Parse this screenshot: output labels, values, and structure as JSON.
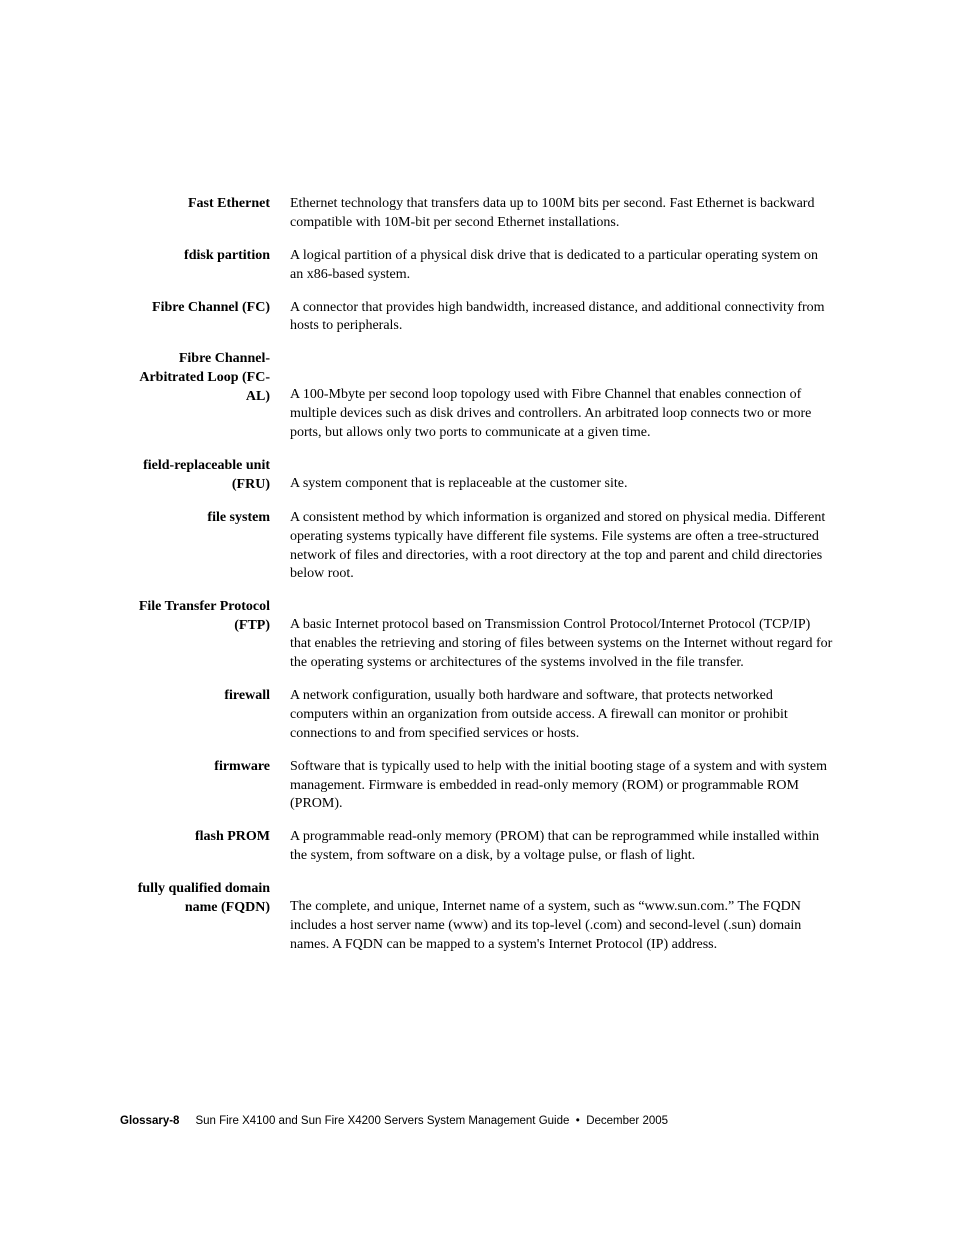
{
  "entries": [
    {
      "term": "Fast Ethernet",
      "definition": "Ethernet technology that transfers data up to 100M bits per second. Fast Ethernet is backward compatible with 10M-bit per second Ethernet installations."
    },
    {
      "term": "fdisk partition",
      "definition": "A logical partition of a physical disk drive that is dedicated to a particular operating system on an x86-based system."
    },
    {
      "term": "Fibre Channel (FC)",
      "definition": "A connector that provides high bandwidth, increased distance, and additional connectivity from hosts to peripherals."
    },
    {
      "term": "Fibre Channel-Arbitrated Loop (FC-AL)",
      "definition": "A 100-Mbyte per second loop topology used with Fibre Channel that enables connection of multiple devices such as disk drives and controllers. An arbitrated loop connects two or more ports, but allows only two ports to communicate at a given time."
    },
    {
      "term": "field-replaceable unit (FRU)",
      "definition": "A system component that is replaceable at the customer site."
    },
    {
      "term": "file system",
      "definition": "A consistent method by which information is organized and stored on physical media. Different operating systems typically have different file systems. File systems are often a tree-structured network of files and directories, with a root directory at the top and parent and child directories below root."
    },
    {
      "term": "File Transfer Protocol (FTP)",
      "definition": "A basic Internet protocol based on Transmission Control Protocol/Internet Protocol (TCP/IP) that enables the retrieving and storing of files between systems on the Internet without regard for the operating systems or architectures of the systems involved in the file transfer."
    },
    {
      "term": "firewall",
      "definition": "A network configuration, usually both hardware and software, that protects networked computers within an organization from outside access. A firewall can monitor or prohibit connections to and from specified services or hosts."
    },
    {
      "term": "firmware",
      "definition": "Software that is typically used to help with the initial booting stage of a system and with system management. Firmware is embedded in read-only memory (ROM) or programmable ROM (PROM)."
    },
    {
      "term": "flash PROM",
      "definition": "A programmable read-only memory (PROM) that can be reprogrammed while installed within the system, from software on a disk, by a voltage pulse, or flash of light."
    },
    {
      "term": "fully qualified domain name (FQDN)",
      "definition": "The complete, and unique, Internet name of a system, such as “www.sun.com.” The FQDN includes a host server name (www) and its top-level (.com) and second-level (.sun) domain names. A FQDN can be mapped to a system's Internet Protocol (IP) address."
    }
  ],
  "footer": {
    "page_label": "Glossary-8",
    "doc_title": "Sun Fire X4100 and Sun Fire X4200 Servers System Management Guide  •  December 2005"
  }
}
